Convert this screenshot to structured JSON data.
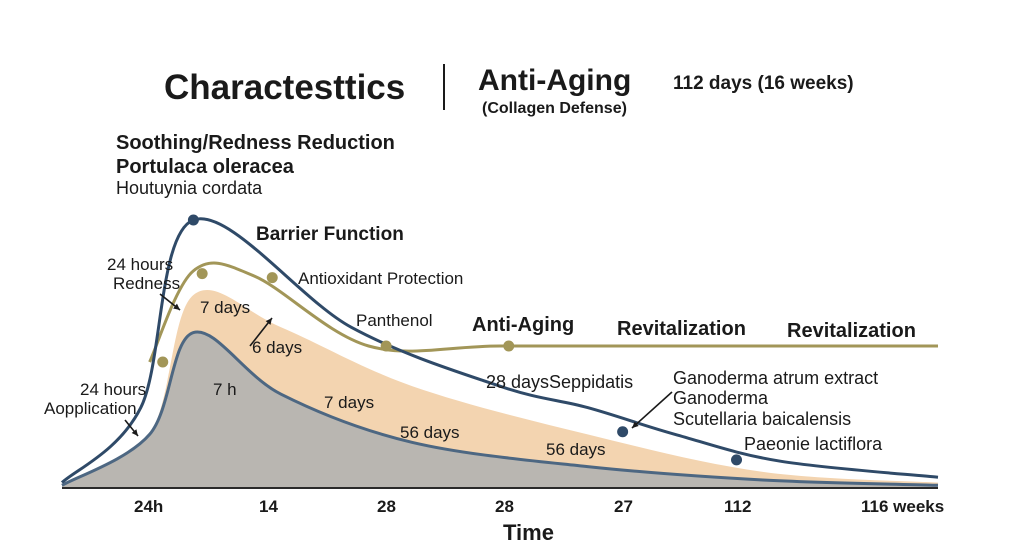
{
  "header": {
    "title": "Charactesttics",
    "center_title": "Anti-Aging",
    "center_subtitle": "(Collagen Defense)",
    "right_note": "112 days (16 weeks)"
  },
  "left_block": {
    "line1": "Soothing/Redness Reduction",
    "line2": "Portulaca oleracea",
    "line3": "Houtuynia cordata"
  },
  "annotations": {
    "barrier_function": "Barrier Function",
    "antioxidant": "Antioxidant Protection",
    "hours_24_top": "24 hours",
    "redness": "Redness",
    "days_7_a": "7 days",
    "panthenol": "Panthenol",
    "anti_aging_mid": "Anti-Aging",
    "revitalization_1": "Revitalization",
    "revitalization_2": "Revitalization",
    "days_6": "6 days",
    "hours_7": "7 h",
    "hours_24_bottom": "24 hours",
    "application": "Aopplication",
    "days_28_seppidatis": "28 daysSeppidatis",
    "ganoderma_atrum": "Ganoderma atrum extract",
    "ganoderma": "Ganoderma",
    "scutellaria": "Scutellaria baicalensis",
    "paeonie": "Paeonie lactiflora",
    "days_7_b": "7 days",
    "days_56_a": "56 days",
    "days_56_b": "56 days"
  },
  "colors": {
    "navy": "#2f4a68",
    "olive": "#a29658",
    "peach": "#f3d4b0",
    "gray": "#b9b6b1",
    "gray_edge": "#4d6782",
    "ink": "#1a1a1a"
  },
  "chart_data": {
    "type": "area",
    "xlabel": "Time",
    "x_ticks": [
      "24h",
      "14",
      "28",
      "28",
      "27",
      "112",
      "116 weeks"
    ],
    "series": [
      {
        "points": [
          [
            0,
            0.02
          ],
          [
            0.09,
            0.3
          ],
          [
            0.15,
            1.0
          ],
          [
            0.33,
            0.6
          ],
          [
            0.5,
            0.38
          ],
          [
            0.6,
            0.3
          ],
          [
            0.7,
            0.2
          ],
          [
            0.82,
            0.1
          ],
          [
            1.0,
            0.04
          ]
        ]
      },
      {
        "points": [
          [
            0.1,
            0.47
          ],
          [
            0.15,
            0.81
          ],
          [
            0.22,
            0.79
          ],
          [
            0.35,
            0.53
          ],
          [
            0.5,
            0.53
          ],
          [
            0.7,
            0.53
          ],
          [
            1.0,
            0.53
          ]
        ]
      },
      {
        "points": [
          [
            0,
            0.01
          ],
          [
            0.1,
            0.2
          ],
          [
            0.15,
            0.72
          ],
          [
            0.25,
            0.6
          ],
          [
            0.4,
            0.38
          ],
          [
            0.6,
            0.2
          ],
          [
            0.8,
            0.06
          ],
          [
            1.0,
            0.02
          ]
        ]
      },
      {
        "points": [
          [
            0,
            0.01
          ],
          [
            0.1,
            0.2
          ],
          [
            0.15,
            0.58
          ],
          [
            0.25,
            0.35
          ],
          [
            0.4,
            0.17
          ],
          [
            0.6,
            0.08
          ],
          [
            0.8,
            0.03
          ],
          [
            1.0,
            0.01
          ]
        ]
      }
    ]
  }
}
